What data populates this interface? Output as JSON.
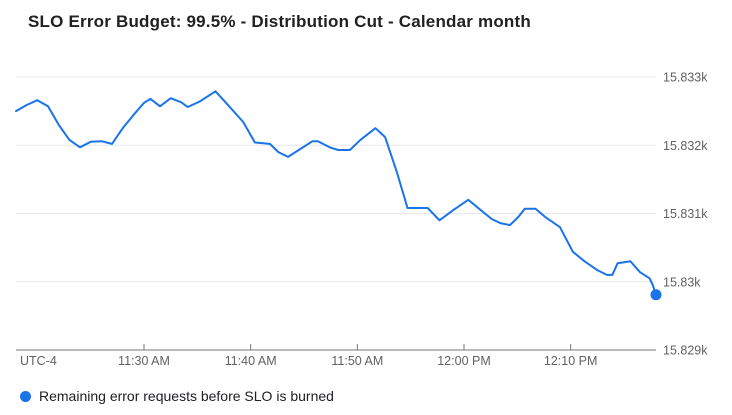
{
  "title": "SLO Error Budget: 99.5% - Distribution Cut - Calendar month",
  "legend": {
    "label": "Remaining error requests before SLO is burned"
  },
  "axes": {
    "timezone_label": "UTC-4",
    "x_ticks": [
      "11:30 AM",
      "11:40 AM",
      "11:50 AM",
      "12:00 PM",
      "12:10 PM"
    ],
    "y_ticks": [
      "15.833k",
      "15.832k",
      "15.831k",
      "15.83k",
      "15.829k"
    ]
  },
  "colors": {
    "line": "#1a73e8",
    "marker": "#1a73e8",
    "grid": "#e7e7e7",
    "axis": "#757575",
    "tick": "#757575",
    "axis_text": "#616161",
    "title_text": "#212121",
    "legend_text": "#202124",
    "background": "#ffffff"
  },
  "chart_data": {
    "type": "line",
    "title": "SLO Error Budget: 99.5% - Distribution Cut - Calendar month",
    "grid": "horizontal",
    "legend_position": "bottom-left",
    "x_timezone_label": "UTC-4",
    "x_start_time": "11:18 AM",
    "x_end_time": "12:18 PM",
    "xlim_minutes": [
      0,
      60
    ],
    "x_tick_minutes": [
      12,
      22,
      32,
      42,
      52
    ],
    "x_tick_labels": [
      "11:30 AM",
      "11:40 AM",
      "11:50 AM",
      "12:00 PM",
      "12:10 PM"
    ],
    "y_tick_values": [
      15833,
      15832,
      15831,
      15830,
      15829
    ],
    "y_tick_labels": [
      "15.833k",
      "15.832k",
      "15.831k",
      "15.83k",
      "15.829k"
    ],
    "ylim": [
      15828.9,
      15833.2
    ],
    "end_marker": true,
    "series": [
      {
        "name": "Remaining error requests before SLO is burned",
        "color": "#1a73e8",
        "points": [
          [
            0,
            15832.5
          ],
          [
            1,
            15832.59
          ],
          [
            2,
            15832.66
          ],
          [
            3,
            15832.57
          ],
          [
            4,
            15832.3
          ],
          [
            5,
            15832.08
          ],
          [
            6,
            15831.97
          ],
          [
            7,
            15832.05
          ],
          [
            8,
            15832.06
          ],
          [
            9,
            15832.02
          ],
          [
            10,
            15832.25
          ],
          [
            11,
            15832.44
          ],
          [
            12,
            15832.62
          ],
          [
            12.6,
            15832.68
          ],
          [
            13.5,
            15832.57
          ],
          [
            14.5,
            15832.69
          ],
          [
            15.5,
            15832.63
          ],
          [
            16.1,
            15832.56
          ],
          [
            17.2,
            15832.64
          ],
          [
            18.7,
            15832.79
          ],
          [
            20.1,
            15832.55
          ],
          [
            21.3,
            15832.34
          ],
          [
            22.4,
            15832.04
          ],
          [
            23.8,
            15832.02
          ],
          [
            24.6,
            15831.9
          ],
          [
            25.5,
            15831.83
          ],
          [
            26.8,
            15831.96
          ],
          [
            27.8,
            15832.06
          ],
          [
            28.3,
            15832.06
          ],
          [
            29.4,
            15831.97
          ],
          [
            30.2,
            15831.93
          ],
          [
            31.3,
            15831.93
          ],
          [
            32.3,
            15832.08
          ],
          [
            33.7,
            15832.25
          ],
          [
            34.6,
            15832.12
          ],
          [
            35.7,
            15831.61
          ],
          [
            36.7,
            15831.08
          ],
          [
            38.6,
            15831.08
          ],
          [
            39.7,
            15830.9
          ],
          [
            41.0,
            15831.05
          ],
          [
            42.4,
            15831.2
          ],
          [
            43.8,
            15831.02
          ],
          [
            44.6,
            15830.92
          ],
          [
            45.4,
            15830.86
          ],
          [
            46.3,
            15830.83
          ],
          [
            47.1,
            15830.95
          ],
          [
            47.7,
            15831.07
          ],
          [
            48.7,
            15831.07
          ],
          [
            49.6,
            15830.95
          ],
          [
            51.0,
            15830.8
          ],
          [
            52.2,
            15830.44
          ],
          [
            53.3,
            15830.3
          ],
          [
            54.5,
            15830.17
          ],
          [
            55.4,
            15830.1
          ],
          [
            55.9,
            15830.1
          ],
          [
            56.4,
            15830.27
          ],
          [
            57.6,
            15830.3
          ],
          [
            58.5,
            15830.14
          ],
          [
            59.4,
            15830.05
          ],
          [
            59.7,
            15829.95
          ],
          [
            60,
            15829.81
          ]
        ]
      }
    ]
  }
}
